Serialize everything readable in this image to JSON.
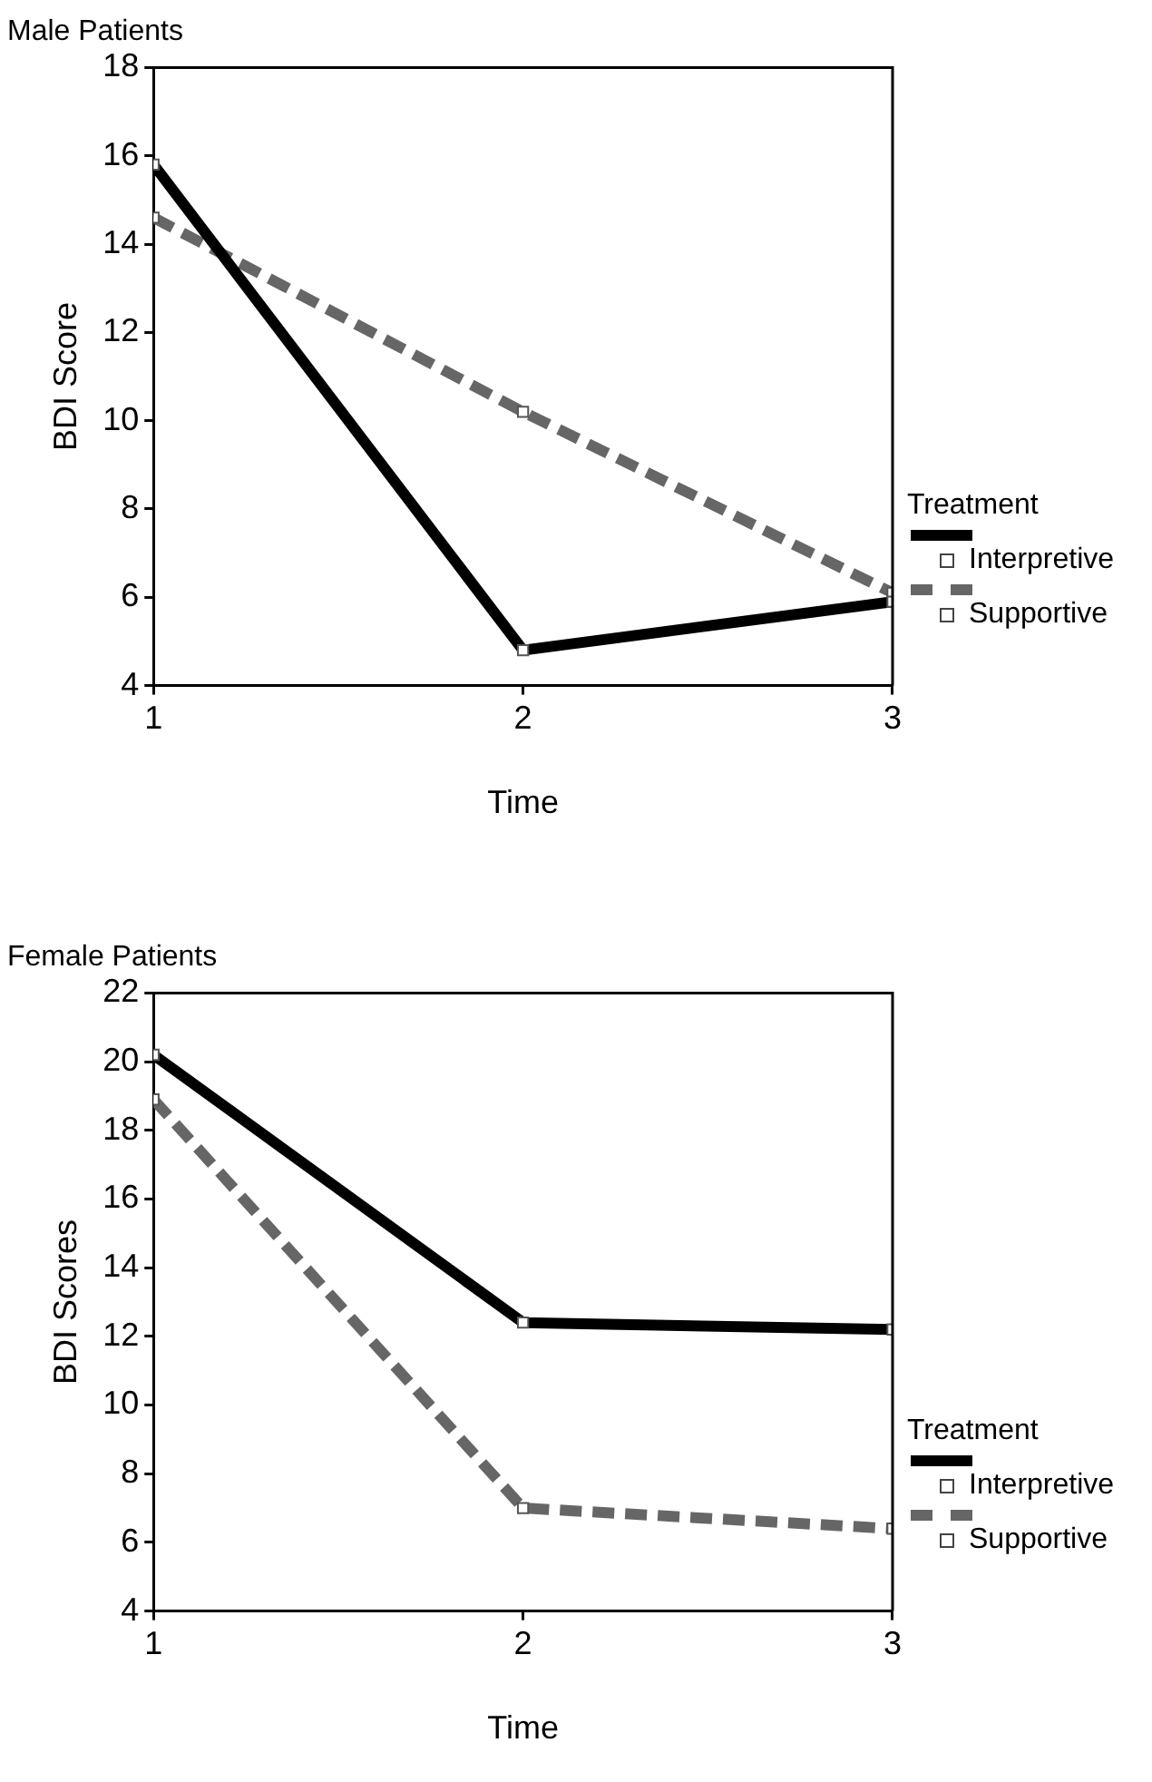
{
  "chart_data": [
    {
      "type": "line",
      "title": "Male Patients",
      "xlabel": "Time",
      "ylabel": "BDI Score",
      "legend_title": "Treatment",
      "legend": "right",
      "grid": false,
      "marker": "square",
      "x": [
        1,
        2,
        3
      ],
      "xlim": [
        1,
        3
      ],
      "xticks": [
        1,
        2,
        3
      ],
      "ylim": [
        4,
        18
      ],
      "yticks": [
        4,
        6,
        8,
        10,
        12,
        14,
        16,
        18
      ],
      "series": [
        {
          "name": "Interpretive",
          "color": "#000000",
          "line_style": "solid",
          "values": [
            15.8,
            4.8,
            5.9
          ]
        },
        {
          "name": "Supportive",
          "color": "#666666",
          "line_style": "dashed",
          "values": [
            14.6,
            10.2,
            6.1
          ]
        }
      ]
    },
    {
      "type": "line",
      "title": "Female Patients",
      "xlabel": "Time",
      "ylabel": "BDI Scores",
      "legend_title": "Treatment",
      "legend": "right",
      "grid": false,
      "marker": "square",
      "x": [
        1,
        2,
        3
      ],
      "xlim": [
        1,
        3
      ],
      "xticks": [
        1,
        2,
        3
      ],
      "ylim": [
        4,
        22
      ],
      "yticks": [
        4,
        6,
        8,
        10,
        12,
        14,
        16,
        18,
        20,
        22
      ],
      "series": [
        {
          "name": "Interpretive",
          "color": "#000000",
          "line_style": "solid",
          "values": [
            20.2,
            12.4,
            12.2
          ]
        },
        {
          "name": "Supportive",
          "color": "#666666",
          "line_style": "dashed",
          "values": [
            18.9,
            7.0,
            6.4
          ]
        }
      ]
    }
  ]
}
